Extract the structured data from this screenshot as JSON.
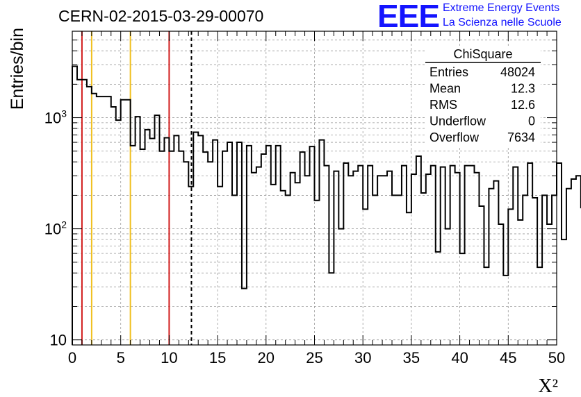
{
  "header": {
    "run_title": "CERN-02-2015-03-29-00070",
    "logo_mark": "EEE",
    "logo_line1": "Extreme Energy Events",
    "logo_line2": "La Scienza nelle Scuole"
  },
  "colors": {
    "frame": "#000000",
    "grid": "#9a9a9a",
    "histogram": "#000000",
    "red_line": "#d21e1e",
    "yellow_line": "#f0c020",
    "logo": "#1414ff"
  },
  "chart_data": {
    "type": "bar",
    "histogram_style": "step",
    "xlabel": "X²",
    "ylabel": "Entries/bin",
    "xlim": [
      0,
      50
    ],
    "ylim": [
      9,
      6000
    ],
    "yscale": "log",
    "grid": true,
    "x_ticks": [
      "0",
      "5",
      "10",
      "15",
      "20",
      "25",
      "30",
      "35",
      "40",
      "45",
      "50"
    ],
    "y_ticks": [
      {
        "value": 10,
        "base": "10",
        "exp": ""
      },
      {
        "value": 100,
        "base": "10",
        "exp": "2"
      },
      {
        "value": 1000,
        "base": "10",
        "exp": "3"
      }
    ],
    "bin_width": 0.5,
    "values": [
      2900,
      2200,
      2200,
      1900,
      1650,
      1550,
      1550,
      1550,
      1250,
      950,
      1450,
      1450,
      560,
      1020,
      520,
      780,
      650,
      1050,
      500,
      660,
      500,
      690,
      500,
      400,
      240,
      740,
      690,
      490,
      400,
      630,
      240,
      500,
      600,
      200,
      600,
      29,
      560,
      320,
      360,
      470,
      560,
      250,
      560,
      220,
      200,
      320,
      260,
      490,
      300,
      550,
      180,
      630,
      370,
      40,
      330,
      100,
      390,
      300,
      330,
      370,
      150,
      370,
      200,
      300,
      300,
      330,
      200,
      200,
      370,
      140,
      310,
      450,
      210,
      310,
      370,
      62,
      360,
      100,
      370,
      320,
      60,
      370,
      370,
      320,
      160,
      45,
      230,
      270,
      110,
      38,
      150,
      360,
      120,
      200,
      390,
      190,
      45,
      200,
      110,
      200,
      390,
      80,
      230,
      280,
      300,
      155,
      290,
      40,
      160,
      230,
      160,
      60,
      150,
      160,
      64,
      170,
      140,
      85,
      55,
      220,
      80,
      270,
      260,
      160,
      80,
      39,
      260,
      100,
      210,
      40,
      310,
      210,
      290,
      40,
      180,
      240,
      250,
      210,
      60,
      115,
      170,
      120,
      90,
      100,
      55,
      90,
      180,
      31,
      220,
      260,
      240,
      195,
      150,
      240,
      190,
      150,
      300,
      100,
      100,
      160,
      320,
      160,
      190,
      100,
      100,
      70,
      100,
      190,
      200,
      290,
      150,
      190,
      230,
      36,
      170,
      110,
      150,
      90,
      130,
      150,
      100,
      210,
      120,
      290,
      130,
      90,
      60,
      30,
      115,
      22,
      80,
      160,
      170,
      60,
      160,
      50,
      120,
      200,
      80,
      60,
      240,
      180,
      80,
      130,
      90,
      60,
      40,
      40,
      110,
      60,
      110,
      140,
      100,
      160,
      55,
      90,
      70,
      50,
      22,
      300,
      80,
      150,
      130,
      30
    ],
    "reference_lines": [
      {
        "x": 1,
        "color": "#d21e1e",
        "style": "solid"
      },
      {
        "x": 2,
        "color": "#f0c020",
        "style": "solid"
      },
      {
        "x": 6,
        "color": "#f0c020",
        "style": "solid"
      },
      {
        "x": 10,
        "color": "#d21e1e",
        "style": "solid"
      },
      {
        "x": 12.3,
        "color": "#000000",
        "style": "dashed"
      }
    ],
    "stats_box": {
      "title": "ChiSquare",
      "rows": [
        {
          "label": "Entries",
          "value": "48024"
        },
        {
          "label": "Mean",
          "value": "12.3"
        },
        {
          "label": "RMS",
          "value": "12.6"
        },
        {
          "label": "Underflow",
          "value": "0"
        },
        {
          "label": "Overflow",
          "value": "7634"
        }
      ]
    }
  }
}
